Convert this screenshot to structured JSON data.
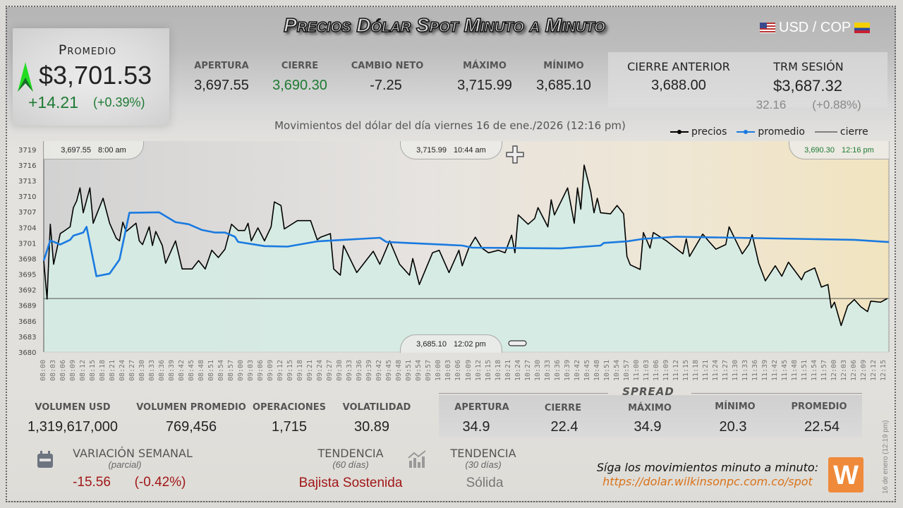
{
  "header": {
    "title": "Precios Dólar Spot Minuto a Minuto",
    "pair": "USD / COP",
    "subtitle": "Movimientos del dólar del día viernes 16 de ene./2026 (12:16 pm)"
  },
  "promedio": {
    "label": "Promedio",
    "value": "$3,701.53",
    "change": "+14.21",
    "change_pct": "(+0.39%)",
    "trend_icon": "arrow-up-icon"
  },
  "stats": [
    {
      "label": "APERTURA",
      "value": "3,697.55"
    },
    {
      "label": "CIERRE",
      "value": "3,690.30"
    },
    {
      "label": "CAMBIO NETO",
      "value": "-7.25"
    },
    {
      "label": "MÁXIMO",
      "value": "3,715.99"
    },
    {
      "label": "MÍNIMO",
      "value": "3,685.10"
    }
  ],
  "cierre_anterior": {
    "label": "CIERRE ANTERIOR",
    "value": "3,688.00"
  },
  "trm": {
    "label": "TRM SESIÓN",
    "value": "$3,687.32",
    "change": "32.16",
    "change_pct": "(+0.88%)"
  },
  "legend": {
    "precios": "precios",
    "promedio": "promedio",
    "cierre": "cierre"
  },
  "annotations": {
    "open": {
      "value": "3,697.55",
      "time": "8:00 am"
    },
    "max": {
      "value": "3,715.99",
      "time": "10:44 am"
    },
    "min": {
      "value": "3,685.10",
      "time": "12:02 pm"
    },
    "last": {
      "value": "3,690.30",
      "time": "12:16 pm"
    }
  },
  "colors": {
    "precios": "#000000",
    "promedio": "#1a7ae0",
    "cierre": "#555555",
    "fill": "#d5ebe4",
    "up": "#1f7a33",
    "down": "#a01818",
    "brand": "#ef8a3a"
  },
  "chart_data": {
    "type": "line",
    "ylim": [
      3680,
      3720.6
    ],
    "yticks": [
      3680,
      3683,
      3686,
      3689,
      3692,
      3695,
      3698,
      3701,
      3704,
      3707,
      3710,
      3713,
      3716,
      3719
    ],
    "xticks": [
      "08:00",
      "08:03",
      "08:06",
      "08:09",
      "08:12",
      "08:15",
      "08:18",
      "08:21",
      "08:24",
      "08:27",
      "08:30",
      "08:33",
      "08:36",
      "08:39",
      "08:42",
      "08:45",
      "08:48",
      "08:51",
      "08:54",
      "08:57",
      "09:00",
      "09:03",
      "09:06",
      "09:09",
      "09:12",
      "09:15",
      "09:18",
      "09:21",
      "09:24",
      "09:27",
      "09:30",
      "09:33",
      "09:36",
      "09:39",
      "09:42",
      "09:45",
      "09:48",
      "09:51",
      "09:54",
      "09:57",
      "10:00",
      "10:03",
      "10:06",
      "10:09",
      "10:12",
      "10:15",
      "10:18",
      "10:21",
      "10:24",
      "10:27",
      "10:30",
      "10:33",
      "10:36",
      "10:39",
      "10:42",
      "10:45",
      "10:48",
      "10:51",
      "10:54",
      "10:57",
      "11:00",
      "11:03",
      "11:06",
      "11:09",
      "11:12",
      "11:15",
      "11:18",
      "11:21",
      "11:24",
      "11:27",
      "11:30",
      "11:33",
      "11:36",
      "11:39",
      "11:42",
      "11:45",
      "11:48",
      "11:51",
      "11:54",
      "11:57",
      "12:00",
      "12:03",
      "12:06",
      "12:09",
      "12:12",
      "12:15"
    ],
    "cierre": 3690.3,
    "series": [
      {
        "name": "precios",
        "points": [
          [
            "08:00",
            3697.55
          ],
          [
            "08:01",
            3690.2
          ],
          [
            "08:02",
            3704.6
          ],
          [
            "08:03",
            3696.9
          ],
          [
            "08:05",
            3702.8
          ],
          [
            "08:06",
            3703.2
          ],
          [
            "08:08",
            3704.1
          ],
          [
            "08:09",
            3707.8
          ],
          [
            "08:10",
            3709.1
          ],
          [
            "08:11",
            3711.6
          ],
          [
            "08:12",
            3706.8
          ],
          [
            "08:14",
            3711.6
          ],
          [
            "08:15",
            3704.8
          ],
          [
            "08:16",
            3706.4
          ],
          [
            "08:18",
            3709.6
          ],
          [
            "08:20",
            3704.8
          ],
          [
            "08:22",
            3701.9
          ],
          [
            "08:23",
            3701.4
          ],
          [
            "08:24",
            3705
          ],
          [
            "08:25",
            3703.2
          ],
          [
            "08:28",
            3704.8
          ],
          [
            "08:29",
            3701.4
          ],
          [
            "08:30",
            3700.7
          ],
          [
            "08:32",
            3704.1
          ],
          [
            "08:33",
            3700.5
          ],
          [
            "08:34",
            3703.2
          ],
          [
            "08:36",
            3700.5
          ],
          [
            "08:37",
            3697.1
          ],
          [
            "08:40",
            3701.4
          ],
          [
            "08:42",
            3696
          ],
          [
            "08:45",
            3696
          ],
          [
            "08:47",
            3697.6
          ],
          [
            "08:49",
            3696
          ],
          [
            "08:51",
            3699.6
          ],
          [
            "08:53",
            3698.2
          ],
          [
            "08:55",
            3699.8
          ],
          [
            "08:57",
            3704.6
          ],
          [
            "08:59",
            3703.4
          ],
          [
            "09:01",
            3703.4
          ],
          [
            "09:02",
            3704.8
          ],
          [
            "09:03",
            3701.4
          ],
          [
            "09:05",
            3703.9
          ],
          [
            "09:07",
            3701.4
          ],
          [
            "09:09",
            3704.1
          ],
          [
            "09:10",
            3708.9
          ],
          [
            "09:12",
            3708.2
          ],
          [
            "09:13",
            3703.7
          ],
          [
            "09:17",
            3705.3
          ],
          [
            "09:21",
            3705.3
          ],
          [
            "09:23",
            3701.6
          ],
          [
            "09:24",
            3702.1
          ],
          [
            "09:27",
            3702.8
          ],
          [
            "09:28",
            3696
          ],
          [
            "09:30",
            3694.8
          ],
          [
            "09:31",
            3700.5
          ],
          [
            "09:35",
            3695.3
          ],
          [
            "09:40",
            3699.4
          ],
          [
            "09:42",
            3696.9
          ],
          [
            "09:45",
            3701.4
          ],
          [
            "09:48",
            3696.9
          ],
          [
            "09:51",
            3694.8
          ],
          [
            "09:52",
            3698
          ],
          [
            "09:54",
            3693
          ],
          [
            "09:58",
            3699.1
          ],
          [
            "10:00",
            3699.6
          ],
          [
            "10:03",
            3695.3
          ],
          [
            "10:06",
            3699.6
          ],
          [
            "10:07",
            3696.6
          ],
          [
            "10:09",
            3700
          ],
          [
            "10:11",
            3702.1
          ],
          [
            "10:13",
            3700
          ],
          [
            "10:15",
            3699.1
          ],
          [
            "10:18",
            3699.6
          ],
          [
            "10:20",
            3699.1
          ],
          [
            "10:22",
            3702.5
          ],
          [
            "10:23",
            3699.1
          ],
          [
            "10:24",
            3706.4
          ],
          [
            "10:27",
            3704.6
          ],
          [
            "10:29",
            3705.7
          ],
          [
            "10:30",
            3707.8
          ],
          [
            "10:33",
            3704.1
          ],
          [
            "10:34",
            3709.3
          ],
          [
            "10:35",
            3706.4
          ],
          [
            "10:39",
            3711.6
          ],
          [
            "10:41",
            3704.8
          ],
          [
            "10:42",
            3711.6
          ],
          [
            "10:43",
            3707.5
          ],
          [
            "10:44",
            3715.99
          ],
          [
            "10:46",
            3710.9
          ],
          [
            "10:47",
            3706.8
          ],
          [
            "10:48",
            3709.6
          ],
          [
            "10:49",
            3706.8
          ],
          [
            "10:52",
            3706.6
          ],
          [
            "10:54",
            3708.2
          ],
          [
            "10:56",
            3706.6
          ],
          [
            "10:57",
            3698.4
          ],
          [
            "10:58",
            3696.8
          ],
          [
            "11:01",
            3695.9
          ],
          [
            "11:02",
            3703
          ],
          [
            "11:04",
            3700
          ],
          [
            "11:05",
            3703
          ],
          [
            "11:09",
            3701.4
          ],
          [
            "11:14",
            3698.9
          ],
          [
            "11:15",
            3701.8
          ],
          [
            "11:16",
            3698.4
          ],
          [
            "11:20",
            3702.7
          ],
          [
            "11:22",
            3701.2
          ],
          [
            "11:24",
            3699.8
          ],
          [
            "11:27",
            3700.7
          ],
          [
            "11:28",
            3704.1
          ],
          [
            "11:32",
            3698.9
          ],
          [
            "11:34",
            3700.7
          ],
          [
            "11:35",
            3702.6
          ],
          [
            "11:37",
            3697.1
          ],
          [
            "11:39",
            3693.7
          ],
          [
            "11:42",
            3696.6
          ],
          [
            "11:44",
            3694.6
          ],
          [
            "11:46",
            3697.3
          ],
          [
            "11:50",
            3693.9
          ],
          [
            "11:51",
            3695.3
          ],
          [
            "11:54",
            3696.2
          ],
          [
            "11:56",
            3692.5
          ],
          [
            "11:58",
            3693
          ],
          [
            "11:59",
            3688.5
          ],
          [
            "12:00",
            3689.6
          ],
          [
            "12:02",
            3685.1
          ],
          [
            "12:04",
            3688.9
          ],
          [
            "12:06",
            3690.1
          ],
          [
            "12:08",
            3688.7
          ],
          [
            "12:10",
            3687.8
          ],
          [
            "12:11",
            3689.8
          ],
          [
            "12:14",
            3689.6
          ],
          [
            "12:16",
            3690.3
          ]
        ]
      },
      {
        "name": "promedio",
        "points": [
          [
            "08:00",
            3697.6
          ],
          [
            "08:02",
            3701.5
          ],
          [
            "08:05",
            3700.7
          ],
          [
            "08:08",
            3701.6
          ],
          [
            "08:09",
            3702.4
          ],
          [
            "08:12",
            3703
          ],
          [
            "08:13",
            3704.1
          ],
          [
            "08:16",
            3694.6
          ],
          [
            "08:20",
            3695.1
          ],
          [
            "08:23",
            3697.8
          ],
          [
            "08:26",
            3706.8
          ],
          [
            "08:35",
            3706.9
          ],
          [
            "08:40",
            3705
          ],
          [
            "08:44",
            3704.6
          ],
          [
            "08:48",
            3703.5
          ],
          [
            "08:52",
            3703
          ],
          [
            "08:55",
            3703
          ],
          [
            "08:58",
            3702.2
          ],
          [
            "08:59",
            3701.2
          ],
          [
            "09:07",
            3700.4
          ],
          [
            "09:14",
            3700.3
          ],
          [
            "09:23",
            3701.3
          ],
          [
            "09:42",
            3702
          ],
          [
            "09:44",
            3701.2
          ],
          [
            "10:07",
            3700.5
          ],
          [
            "10:10",
            3700.1
          ],
          [
            "10:37",
            3699.95
          ],
          [
            "10:49",
            3700.5
          ],
          [
            "10:50",
            3701
          ],
          [
            "10:57",
            3701.3
          ],
          [
            "11:02",
            3701.8
          ],
          [
            "11:12",
            3702.2
          ],
          [
            "11:57",
            3701.7
          ],
          [
            "12:06",
            3701.6
          ],
          [
            "12:16",
            3701.2
          ]
        ]
      }
    ]
  },
  "bottom_stats": [
    {
      "label": "VOLUMEN USD",
      "value": "1,319,617,000"
    },
    {
      "label": "VOLUMEN PROMEDIO",
      "value": "769,456"
    },
    {
      "label": "OPERACIONES",
      "value": "1,715"
    },
    {
      "label": "VOLATILIDAD",
      "value": "30.89"
    }
  ],
  "spread": {
    "title": "SPREAD",
    "items": [
      {
        "label": "APERTURA",
        "value": "34.9"
      },
      {
        "label": "CIERRE",
        "value": "22.4"
      },
      {
        "label": "MÁXIMO",
        "value": "34.9"
      },
      {
        "label": "MÍNIMO",
        "value": "20.3"
      },
      {
        "label": "PROMEDIO",
        "value": "22.54"
      }
    ]
  },
  "weekly": {
    "label": "VARIACIÓN SEMANAL",
    "sub": "(parcial)",
    "change": "-15.56",
    "change_pct": "(-0.42%)"
  },
  "trend60": {
    "label": "TENDENCIA",
    "sub": "(60 días)",
    "value": "Bajista Sostenida"
  },
  "trend30": {
    "label": "TENDENCIA",
    "sub": "(30 días)",
    "value": "Sólida"
  },
  "promo": {
    "text": "Síga los movimientos minuto a minuto:",
    "url": "https://dolar.wilkinsonpc.com.co/spot",
    "logo": "W"
  },
  "timestamp": "16 de enero (12:19 pm)"
}
